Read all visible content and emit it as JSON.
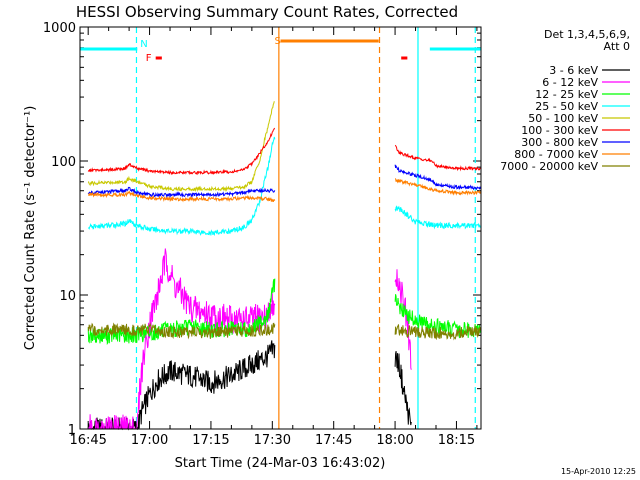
{
  "chart_data": {
    "type": "line",
    "title": "HESSI Observing Summary Count Rates, Corrected",
    "xlabel": "Start Time (24-Mar-03 16:43:02)",
    "ylabel": "Corrected Count Rate (s⁻¹ detector⁻¹)",
    "yscale": "log",
    "ylim": [
      1,
      1000
    ],
    "xlim_minutes_after_16:45": [
      -2,
      96
    ],
    "x_ticks": [
      {
        "label": "16:45",
        "min": 0
      },
      {
        "label": "17:00",
        "min": 15
      },
      {
        "label": "17:15",
        "min": 30
      },
      {
        "label": "17:30",
        "min": 45
      },
      {
        "label": "17:45",
        "min": 60
      },
      {
        "label": "18:00",
        "min": 75
      },
      {
        "label": "18:15",
        "min": 90
      }
    ],
    "y_ticks": [
      {
        "label": "1",
        "value": 1
      },
      {
        "label": "10",
        "value": 10
      },
      {
        "label": "100",
        "value": 100
      },
      {
        "label": "1000",
        "value": 1000
      }
    ],
    "legend": {
      "placement": "right",
      "header": [
        "Det 1,3,4,5,6,9,",
        "Att 0"
      ]
    },
    "series": [
      {
        "name": "3 - 6 keV",
        "color": "#000000",
        "x": [
          0,
          12,
          13,
          15,
          17,
          20,
          25,
          30,
          35,
          40,
          44,
          45.5,
          75,
          76,
          77,
          78,
          79
        ],
        "y": [
          1,
          1,
          1.3,
          1.8,
          2.3,
          2.7,
          2.5,
          2.2,
          2.5,
          3,
          3.5,
          4,
          3.5,
          3,
          2,
          1.4,
          1
        ]
      },
      {
        "name": "6 - 12 keV",
        "color": "#ff00ff",
        "x": [
          0,
          12,
          13,
          15,
          17,
          19,
          21,
          25,
          30,
          35,
          40,
          44,
          45.5,
          75,
          76,
          77,
          78,
          79
        ],
        "y": [
          1,
          1,
          2.5,
          6,
          10,
          18,
          12,
          8,
          7,
          6.5,
          6.5,
          7,
          9,
          15,
          12,
          9,
          6,
          3
        ]
      },
      {
        "name": "12 - 25 keV",
        "color": "#00ff00",
        "x": [
          0,
          10,
          15,
          20,
          25,
          30,
          35,
          40,
          44,
          45.5,
          75,
          78,
          82,
          90,
          96
        ],
        "y": [
          5,
          5,
          5.2,
          5.5,
          5.8,
          5.5,
          5.5,
          5.6,
          7,
          12,
          9,
          7,
          6,
          5.5,
          5.5
        ]
      },
      {
        "name": "25 - 50 keV",
        "color": "#00ffff",
        "x": [
          0,
          5,
          9,
          10,
          12,
          15,
          20,
          25,
          30,
          35,
          38,
          40,
          42,
          44,
          45.5,
          75,
          76,
          80,
          85,
          90,
          96
        ],
        "y": [
          32,
          33,
          34,
          36,
          33,
          31,
          30,
          30,
          29,
          30,
          32,
          36,
          50,
          90,
          150,
          45,
          44,
          35,
          33,
          33,
          33
        ]
      },
      {
        "name": "50 - 100 keV",
        "color": "#c8c800",
        "x": [
          0,
          9,
          10,
          12,
          15,
          20,
          25,
          30,
          35,
          38,
          40,
          42,
          44,
          45.5
        ],
        "y": [
          68,
          70,
          74,
          70,
          65,
          62,
          62,
          62,
          62,
          64,
          70,
          100,
          180,
          280
        ]
      },
      {
        "name": "100 - 300 keV",
        "color": "#ff0000",
        "x": [
          0,
          5,
          9,
          10,
          12,
          15,
          20,
          25,
          30,
          35,
          38,
          40,
          42,
          44,
          45.5,
          75,
          76,
          80,
          84,
          85,
          90,
          96
        ],
        "y": [
          85,
          86,
          88,
          94,
          88,
          84,
          82,
          82,
          82,
          83,
          86,
          95,
          115,
          140,
          175,
          130,
          115,
          105,
          100,
          92,
          88,
          88
        ]
      },
      {
        "name": "300 - 800 keV",
        "color": "#0000ff",
        "x": [
          0,
          5,
          9,
          10,
          12,
          15,
          20,
          25,
          30,
          35,
          38,
          40,
          42,
          44,
          45.5,
          75,
          76,
          80,
          84,
          85,
          90,
          96
        ],
        "y": [
          58,
          59,
          60,
          62,
          58,
          56,
          56,
          56,
          56,
          57,
          58,
          60,
          60,
          60,
          60,
          92,
          85,
          78,
          72,
          66,
          64,
          63
        ]
      },
      {
        "name": "800 - 7000 keV",
        "color": "#ff7f00",
        "x": [
          0,
          9,
          10,
          12,
          15,
          20,
          25,
          30,
          35,
          38,
          40,
          44,
          45.5,
          75,
          80,
          85,
          90,
          96
        ],
        "y": [
          56,
          56,
          58,
          55,
          53,
          52,
          52,
          52,
          52,
          53,
          53,
          52,
          50,
          72,
          66,
          60,
          58,
          58
        ]
      },
      {
        "name": "7000 - 20000 keV",
        "color": "#808000",
        "x": [
          0,
          10,
          15,
          20,
          25,
          30,
          35,
          40,
          44,
          45.5,
          75,
          80,
          85,
          90,
          96
        ],
        "y": [
          5.5,
          5.5,
          5.5,
          5.3,
          5.3,
          5.2,
          5.3,
          5.4,
          5.5,
          5.6,
          5.5,
          5.3,
          5.2,
          5.2,
          5.4
        ]
      }
    ],
    "flag_bars": [
      {
        "label": "N",
        "color": "#00ffff",
        "segments": [
          [
            -2,
            12
          ],
          [
            83.5,
            96
          ]
        ]
      },
      {
        "label": "F",
        "color": "#ff0000",
        "segments": [
          [
            16.5,
            18
          ]
        ]
      },
      {
        "label": "S",
        "color": "#ff7f00",
        "segments": [
          [
            47,
            71
          ]
        ]
      },
      {
        "label": "",
        "color": "#ff0000",
        "segments": [
          [
            76.5,
            78
          ]
        ]
      }
    ],
    "vertical_lines": [
      {
        "min": 11.8,
        "color": "#00ffff",
        "style": "dashed"
      },
      {
        "min": 46.6,
        "color": "#ff7f00",
        "style": "solid"
      },
      {
        "min": 71.2,
        "color": "#ff7f00",
        "style": "dashed"
      },
      {
        "min": 80.6,
        "color": "#00ffff",
        "style": "solid"
      },
      {
        "min": 94.6,
        "color": "#00ffff",
        "style": "dashed"
      }
    ]
  },
  "footer_date": "15-Apr-2010 12:25"
}
